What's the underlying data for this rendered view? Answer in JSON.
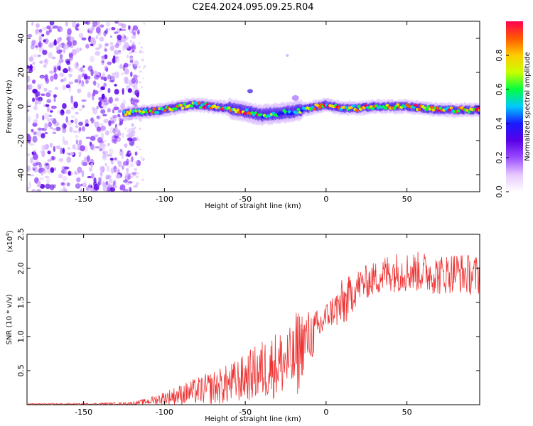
{
  "figure": {
    "title": "C2E4.2024.095.09.25.R04"
  },
  "chart_data": [
    {
      "type": "heatmap",
      "name": "spectrogram",
      "xlabel": "Height of straight line (km)",
      "ylabel": "Frequency (Hz)",
      "xlim": [
        -185,
        95
      ],
      "ylim": [
        -50,
        50
      ],
      "xticks": [
        -150,
        -100,
        -50,
        0,
        50
      ],
      "xtick_labels": [
        "-150",
        "-100",
        "-50",
        "0",
        "50"
      ],
      "yticks": [
        -40,
        -20,
        0,
        20,
        40
      ],
      "ytick_labels": [
        "-40",
        "-20",
        "0",
        "20",
        "40"
      ],
      "noise_region_x": [
        -185,
        -120
      ],
      "signal_ridge": {
        "x": [
          -125,
          -110,
          -100,
          -90,
          -80,
          -70,
          -60,
          -50,
          -40,
          -30,
          -20,
          -15,
          -10,
          0,
          10,
          20,
          30,
          40,
          50,
          60,
          70,
          80,
          95
        ],
        "frequency": [
          -4,
          -3,
          -2,
          0,
          1,
          0,
          -1,
          -3,
          -5,
          -4,
          -3,
          -2,
          -1,
          1,
          -1,
          -1,
          0,
          0,
          0,
          -1,
          -2,
          -2,
          -2
        ]
      },
      "colorbar": {
        "label": "Normalized spectral amplitude",
        "range": [
          0,
          1
        ],
        "ticks": [
          0.0,
          0.2,
          0.4,
          0.6,
          0.8
        ],
        "tick_labels": [
          "0.0",
          "0.2",
          "0.4",
          "0.6",
          "0.8"
        ],
        "colors": [
          "#ffffff",
          "#e6c8ff",
          "#9a4dff",
          "#5a00e6",
          "#1a1aff",
          "#00c8ff",
          "#00ff40",
          "#c8ff00",
          "#ffcc00",
          "#ff5a00",
          "#ff0050"
        ]
      }
    },
    {
      "type": "line",
      "name": "snr",
      "xlabel": "Height of straight line (km)",
      "ylabel": "SNR (10 * v/v)",
      "exponent_label": "(x10",
      "exponent_power": "4",
      "exponent_close": ")",
      "xlim": [
        -185,
        95
      ],
      "ylim": [
        0,
        2.5
      ],
      "xticks": [
        -150,
        -100,
        -50,
        0,
        50
      ],
      "xtick_labels": [
        "-150",
        "-100",
        "-50",
        "0",
        "50"
      ],
      "yticks": [
        0.5,
        1.0,
        1.5,
        2.0,
        2.5
      ],
      "ytick_labels": [
        "0.5",
        "1.0",
        "1.5",
        "2.0",
        "2.5"
      ],
      "color": "#ee3333",
      "envelope": {
        "x": [
          -185,
          -150,
          -120,
          -110,
          -100,
          -90,
          -80,
          -70,
          -60,
          -50,
          -40,
          -30,
          -20,
          -18,
          -15,
          -10,
          -5,
          0,
          5,
          10,
          15,
          20,
          30,
          40,
          50,
          60,
          70,
          80,
          90,
          95
        ],
        "mean": [
          0.01,
          0.01,
          0.02,
          0.05,
          0.1,
          0.15,
          0.2,
          0.25,
          0.3,
          0.4,
          0.5,
          0.6,
          0.65,
          0.75,
          0.9,
          1.0,
          1.1,
          1.3,
          1.4,
          1.45,
          1.6,
          1.75,
          1.85,
          1.95,
          1.95,
          1.95,
          1.9,
          1.95,
          1.9,
          1.9
        ],
        "spread": [
          0.01,
          0.01,
          0.02,
          0.05,
          0.1,
          0.15,
          0.2,
          0.25,
          0.3,
          0.35,
          0.45,
          0.5,
          0.5,
          0.7,
          0.5,
          0.4,
          0.3,
          0.2,
          0.25,
          0.4,
          0.3,
          0.25,
          0.25,
          0.3,
          0.3,
          0.3,
          0.3,
          0.3,
          0.3,
          0.3
        ]
      }
    }
  ]
}
